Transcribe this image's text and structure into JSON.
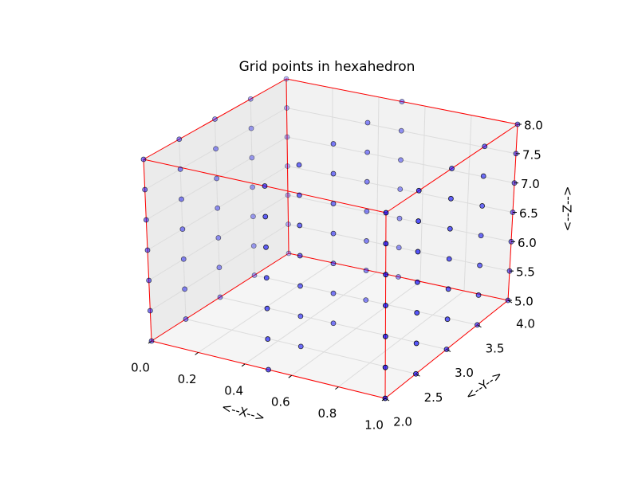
{
  "chart_data": {
    "type": "scatter3d",
    "title": "Grid points in hexahedron",
    "xlabel": "<--X-->",
    "ylabel": "<--Y-->",
    "zlabel": "<--Z-->",
    "xlim": [
      0,
      1
    ],
    "ylim": [
      2,
      4
    ],
    "zlim": [
      5,
      8
    ],
    "xticks": [
      {
        "value": 0,
        "label": "0.0"
      },
      0.2,
      0.4,
      0.6,
      0.8,
      {
        "value": 1,
        "label": "1.0"
      }
    ],
    "yticks": [
      {
        "value": 2,
        "label": "2.0"
      },
      2.5,
      {
        "value": 3,
        "label": "3.0"
      },
      3.5,
      {
        "value": 4,
        "label": "4.0"
      }
    ],
    "zticks": [
      {
        "value": 5,
        "label": "5.0"
      },
      5.5,
      {
        "value": 6,
        "label": "6.0"
      },
      6.5,
      {
        "value": 7,
        "label": "7.0"
      },
      7.5,
      {
        "value": 8,
        "label": "8.0"
      }
    ],
    "grid": true,
    "color": "#0000ff",
    "edge_color": "#ff0000",
    "x": [
      0,
      0,
      0,
      0,
      0,
      0,
      0,
      0,
      0,
      0,
      0,
      0,
      0,
      0,
      0,
      0,
      0,
      0,
      0,
      0,
      0,
      0,
      0,
      0,
      0,
      0,
      0,
      0,
      0,
      0,
      0,
      0,
      0,
      0,
      0,
      0.5,
      0.5,
      0.5,
      0.5,
      0.5,
      0.5,
      0.5,
      0.5,
      0.5,
      0.5,
      0.5,
      0.5,
      0.5,
      0.5,
      0.5,
      0.5,
      0.5,
      0.5,
      0.5,
      0.5,
      0.5,
      0.5,
      0.5,
      0.5,
      0.5,
      0.5,
      0.5,
      0.5,
      0.5,
      0.5,
      0.5,
      0.5,
      0.5,
      0.5,
      0.5,
      1,
      1,
      1,
      1,
      1,
      1,
      1,
      1,
      1,
      1,
      1,
      1,
      1,
      1,
      1,
      1,
      1,
      1,
      1,
      1,
      1,
      1,
      1,
      1,
      1,
      1,
      1,
      1,
      1,
      1,
      1,
      1,
      1,
      1,
      1
    ],
    "y": [
      2,
      2,
      2,
      2,
      2,
      2,
      2,
      2.5,
      2.5,
      2.5,
      2.5,
      2.5,
      2.5,
      2.5,
      3,
      3,
      3,
      3,
      3,
      3,
      3,
      3.5,
      3.5,
      3.5,
      3.5,
      3.5,
      3.5,
      3.5,
      4,
      4,
      4,
      4,
      4,
      4,
      4,
      2,
      2,
      2,
      2,
      2,
      2,
      2,
      2.5,
      2.5,
      2.5,
      2.5,
      2.5,
      2.5,
      2.5,
      3,
      3,
      3,
      3,
      3,
      3,
      3,
      3.5,
      3.5,
      3.5,
      3.5,
      3.5,
      3.5,
      3.5,
      4,
      4,
      4,
      4,
      4,
      4,
      4,
      2,
      2,
      2,
      2,
      2,
      2,
      2,
      2.5,
      2.5,
      2.5,
      2.5,
      2.5,
      2.5,
      2.5,
      3,
      3,
      3,
      3,
      3,
      3,
      3,
      3.5,
      3.5,
      3.5,
      3.5,
      3.5,
      3.5,
      3.5,
      4,
      4,
      4,
      4,
      4,
      4,
      4
    ],
    "z": [
      5,
      5.5,
      6,
      6.5,
      7,
      7.5,
      8,
      5,
      5.5,
      6,
      6.5,
      7,
      7.5,
      8,
      5,
      5.5,
      6,
      6.5,
      7,
      7.5,
      8,
      5,
      5.5,
      6,
      6.5,
      7,
      7.5,
      8,
      5,
      5.5,
      6,
      6.5,
      7,
      7.5,
      8,
      5,
      5.5,
      6,
      6.5,
      7,
      7.5,
      8,
      5,
      5.5,
      6,
      6.5,
      7,
      7.5,
      8,
      5,
      5.5,
      6,
      6.5,
      7,
      7.5,
      8,
      5,
      5.5,
      6,
      6.5,
      7,
      7.5,
      8,
      5,
      5.5,
      6,
      6.5,
      7,
      7.5,
      8,
      5,
      5.5,
      6,
      6.5,
      7,
      7.5,
      8,
      5,
      5.5,
      6,
      6.5,
      7,
      7.5,
      8,
      5,
      5.5,
      6,
      6.5,
      7,
      7.5,
      8,
      5,
      5.5,
      6,
      6.5,
      7,
      7.5,
      8,
      5,
      5.5,
      6,
      6.5,
      7,
      7.5,
      8
    ]
  }
}
